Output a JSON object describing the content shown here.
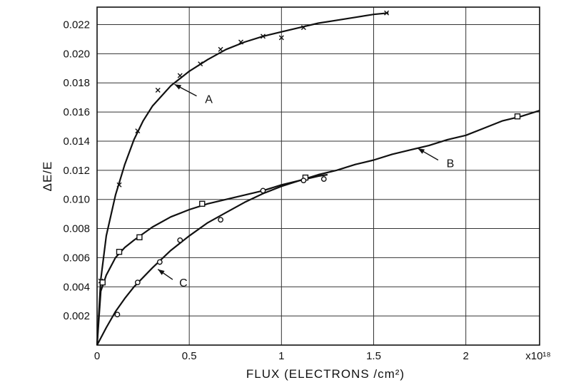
{
  "chart_data": {
    "type": "line",
    "xlabel": "FLUX (ELECTRONS /cm²)",
    "ylabel": "ΔE/E",
    "x_multiplier_label": "x10¹⁸",
    "xlim": [
      0,
      2.4
    ],
    "ylim": [
      0,
      0.0232
    ],
    "grid": true,
    "x_ticks": [
      0,
      0.5,
      1,
      1.5,
      2
    ],
    "x_tick_labels": [
      "0",
      "0.5",
      "1",
      "1.5",
      "2"
    ],
    "y_ticks": [
      0.002,
      0.004,
      0.006,
      0.008,
      0.01,
      0.012,
      0.014,
      0.016,
      0.018,
      0.02,
      0.022
    ],
    "y_tick_labels": [
      "0.002",
      "0.004",
      "0.006",
      "0.008",
      "0.010",
      "0.012",
      "0.014",
      "0.016",
      "0.018",
      "0.020",
      "0.022"
    ],
    "series": [
      {
        "name": "A",
        "marker": "x",
        "points": [
          {
            "x": 0.02,
            "y": 0.0044
          },
          {
            "x": 0.12,
            "y": 0.011
          },
          {
            "x": 0.22,
            "y": 0.0147
          },
          {
            "x": 0.33,
            "y": 0.0175
          },
          {
            "x": 0.45,
            "y": 0.0185
          },
          {
            "x": 0.56,
            "y": 0.0193
          },
          {
            "x": 0.67,
            "y": 0.0203
          },
          {
            "x": 0.78,
            "y": 0.0208
          },
          {
            "x": 0.9,
            "y": 0.0212
          },
          {
            "x": 1.0,
            "y": 0.0211
          },
          {
            "x": 1.12,
            "y": 0.0218
          },
          {
            "x": 1.57,
            "y": 0.0228
          }
        ],
        "curve": [
          [
            0,
            0
          ],
          [
            0.02,
            0.0045
          ],
          [
            0.05,
            0.0075
          ],
          [
            0.1,
            0.0103
          ],
          [
            0.15,
            0.0124
          ],
          [
            0.2,
            0.0141
          ],
          [
            0.25,
            0.0154
          ],
          [
            0.3,
            0.0164
          ],
          [
            0.4,
            0.0178
          ],
          [
            0.5,
            0.0188
          ],
          [
            0.6,
            0.0196
          ],
          [
            0.7,
            0.0203
          ],
          [
            0.8,
            0.0208
          ],
          [
            0.9,
            0.0212
          ],
          [
            1.0,
            0.0215
          ],
          [
            1.1,
            0.0218
          ],
          [
            1.2,
            0.0221
          ],
          [
            1.3,
            0.0223
          ],
          [
            1.4,
            0.0225
          ],
          [
            1.5,
            0.0227
          ],
          [
            1.58,
            0.0228
          ]
        ]
      },
      {
        "name": "B",
        "marker": "square",
        "points": [
          {
            "x": 0.03,
            "y": 0.0043
          },
          {
            "x": 0.12,
            "y": 0.0064
          },
          {
            "x": 0.23,
            "y": 0.0074
          },
          {
            "x": 0.57,
            "y": 0.0097
          },
          {
            "x": 1.13,
            "y": 0.0115
          },
          {
            "x": 2.28,
            "y": 0.0157
          }
        ],
        "curve": [
          [
            0,
            0
          ],
          [
            0.02,
            0.0037
          ],
          [
            0.05,
            0.0048
          ],
          [
            0.1,
            0.006
          ],
          [
            0.15,
            0.0067
          ],
          [
            0.2,
            0.0072
          ],
          [
            0.3,
            0.0081
          ],
          [
            0.4,
            0.0088
          ],
          [
            0.5,
            0.0093
          ],
          [
            0.6,
            0.0097
          ],
          [
            0.7,
            0.01
          ],
          [
            0.8,
            0.0103
          ],
          [
            0.9,
            0.0106
          ],
          [
            1.0,
            0.011
          ],
          [
            1.1,
            0.0113
          ],
          [
            1.2,
            0.0117
          ],
          [
            1.3,
            0.012
          ],
          [
            1.4,
            0.0124
          ],
          [
            1.5,
            0.0127
          ],
          [
            1.6,
            0.0131
          ],
          [
            1.7,
            0.0134
          ],
          [
            1.8,
            0.0137
          ],
          [
            1.9,
            0.0141
          ],
          [
            2.0,
            0.0144
          ],
          [
            2.1,
            0.0149
          ],
          [
            2.2,
            0.0154
          ],
          [
            2.3,
            0.0157
          ],
          [
            2.4,
            0.0161
          ]
        ]
      },
      {
        "name": "C",
        "marker": "circle",
        "points": [
          {
            "x": 0.11,
            "y": 0.0021
          },
          {
            "x": 0.22,
            "y": 0.0043
          },
          {
            "x": 0.34,
            "y": 0.0057
          },
          {
            "x": 0.45,
            "y": 0.0072
          },
          {
            "x": 0.67,
            "y": 0.0086
          },
          {
            "x": 0.9,
            "y": 0.0106
          },
          {
            "x": 1.12,
            "y": 0.0113
          },
          {
            "x": 1.23,
            "y": 0.0114
          }
        ],
        "curve": [
          [
            0,
            0
          ],
          [
            0.05,
            0.0012
          ],
          [
            0.1,
            0.0023
          ],
          [
            0.15,
            0.0032
          ],
          [
            0.2,
            0.004
          ],
          [
            0.3,
            0.0053
          ],
          [
            0.4,
            0.0065
          ],
          [
            0.5,
            0.0075
          ],
          [
            0.6,
            0.0084
          ],
          [
            0.7,
            0.0091
          ],
          [
            0.8,
            0.0098
          ],
          [
            0.9,
            0.0104
          ],
          [
            1.0,
            0.0109
          ],
          [
            1.1,
            0.0113
          ],
          [
            1.2,
            0.0116
          ],
          [
            1.25,
            0.0117
          ]
        ]
      }
    ],
    "annotations": [
      {
        "text": "A",
        "arrow_from": [
          0.54,
          0.0171
        ],
        "arrow_to": [
          0.42,
          0.0179
        ],
        "label_at": [
          0.57,
          0.0169
        ]
      },
      {
        "text": "B",
        "arrow_from": [
          1.85,
          0.0127
        ],
        "arrow_to": [
          1.74,
          0.0135
        ],
        "label_at": [
          1.88,
          0.0125
        ]
      },
      {
        "text": "C",
        "arrow_from": [
          0.41,
          0.0045
        ],
        "arrow_to": [
          0.33,
          0.0052
        ],
        "label_at": [
          0.43,
          0.0043
        ]
      }
    ]
  }
}
